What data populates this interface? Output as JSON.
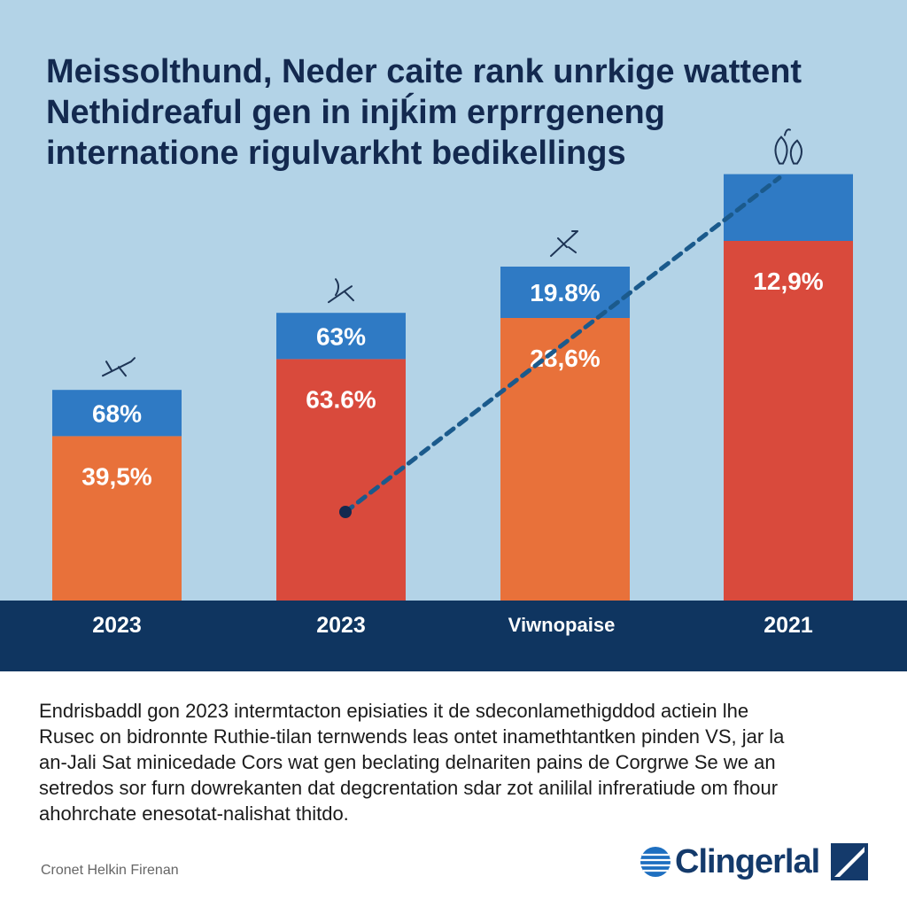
{
  "title_lines": [
    "Meissolthund, Neder caite rank unrkige wattent",
    "Nethidreaful gen in injḱim erprrgeneng",
    "internatione rigulvarkht bedikellings"
  ],
  "description_lines": [
    "Endrisbaddl gon 2023 intermtacton episiaties it de sdeconlamethigddod actiein lhe",
    "Rusec on bidronnte Ruthie-tilan ternwends leas ontet inamethtantken pinden VS, jar la",
    "an-Jali Sat minicedade Cors wat gen beclating delnariten pains de Corgrwe Se we an",
    "setredos sor furn dowrekanten dat degcrentation sdar zot anililal infreratiude om fhour",
    "ahohrchate enesotat-nalishat thitdo."
  ],
  "source": "Cronet Helkin Firenan",
  "logo_text": "Clingerlal",
  "colors": {
    "background": "#b3d3e7",
    "top_segment": "#2f7ac4",
    "orange": "#e8713a",
    "red": "#d94a3c",
    "axis_band": "#0f3560",
    "title": "#13294f",
    "trend_line": "#1b5a8c"
  },
  "chart_data": {
    "type": "bar",
    "stacked": true,
    "categories": [
      "2023",
      "2023",
      "Viwnopaise",
      "2021"
    ],
    "series": [
      {
        "labels": [
          "39,5%",
          "63.6%",
          "28,6%",
          "12,9%"
        ],
        "colors": [
          "#e8713a",
          "#d94a3c",
          "#e8713a",
          "#d94a3c"
        ],
        "relative_heights": [
          0.32,
          0.47,
          0.55,
          0.7
        ]
      },
      {
        "labels": [
          "68%",
          "63%",
          "19.8%",
          ""
        ],
        "colors": [
          "#2f7ac4",
          "#2f7ac4",
          "#2f7ac4",
          "#2f7ac4"
        ],
        "relative_heights": [
          0.09,
          0.09,
          0.1,
          0.13
        ]
      }
    ],
    "trend_line": {
      "style": "dotted",
      "from_category": 1,
      "to_category": 3
    },
    "bar_icons": [
      "airplane-icon",
      "satellite-icon",
      "rocket-icon",
      "bells-icon"
    ],
    "grid": false
  }
}
